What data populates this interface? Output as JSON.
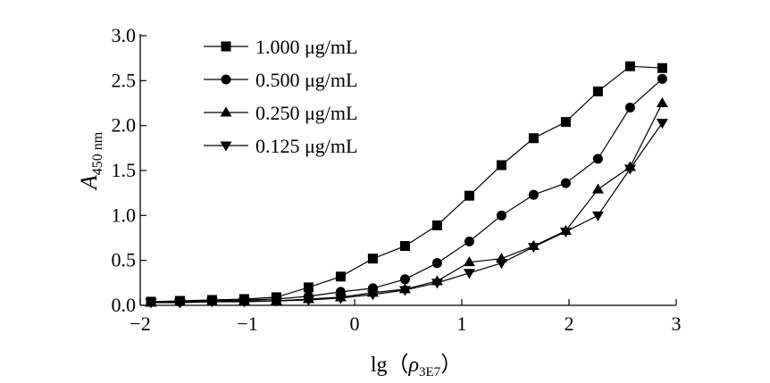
{
  "chart_data": {
    "type": "line",
    "xlabel": {
      "main": "lg（",
      "symbol": "ρ",
      "sub": "3E7",
      "close": "）"
    },
    "ylabel": {
      "main": "A",
      "sub": "450 nm"
    },
    "xlim": [
      -2,
      3
    ],
    "ylim": [
      0,
      3
    ],
    "xticks": [
      "−2",
      "−1",
      "0",
      "1",
      "2",
      "3"
    ],
    "xtick_values": [
      -2,
      -1,
      0,
      1,
      2,
      3
    ],
    "yticks": [
      "0.0",
      "0.5",
      "1.0",
      "1.5",
      "2.0",
      "2.5",
      "3.0"
    ],
    "ytick_values": [
      0,
      0.5,
      1,
      1.5,
      2,
      2.5,
      3
    ],
    "grid": false,
    "legend_position": "top-left",
    "series": [
      {
        "name": "1.000 μg/mL",
        "marker": "square",
        "x": [
          -1.9,
          -1.63,
          -1.33,
          -1.03,
          -0.73,
          -0.43,
          -0.13,
          0.17,
          0.47,
          0.77,
          1.07,
          1.37,
          1.67,
          1.97,
          2.27,
          2.57,
          2.87
        ],
        "y": [
          0.04,
          0.05,
          0.06,
          0.07,
          0.09,
          0.2,
          0.32,
          0.52,
          0.66,
          0.89,
          1.22,
          1.56,
          1.86,
          2.04,
          2.38,
          2.66,
          2.64
        ]
      },
      {
        "name": "0.500 μg/mL",
        "marker": "circle",
        "x": [
          -1.9,
          -1.63,
          -1.33,
          -1.03,
          -0.73,
          -0.43,
          -0.13,
          0.17,
          0.47,
          0.77,
          1.07,
          1.37,
          1.67,
          1.97,
          2.27,
          2.57,
          2.87
        ],
        "y": [
          0.04,
          0.04,
          0.05,
          0.06,
          0.07,
          0.1,
          0.15,
          0.19,
          0.29,
          0.47,
          0.71,
          1.0,
          1.23,
          1.36,
          1.63,
          2.2,
          2.52
        ]
      },
      {
        "name": "0.250 μg/mL",
        "marker": "triangle-up",
        "x": [
          -1.9,
          -1.63,
          -1.33,
          -1.03,
          -0.73,
          -0.43,
          -0.13,
          0.17,
          0.47,
          0.77,
          1.07,
          1.37,
          1.67,
          1.97,
          2.27,
          2.57,
          2.87
        ],
        "y": [
          0.03,
          0.04,
          0.04,
          0.05,
          0.05,
          0.07,
          0.09,
          0.14,
          0.18,
          0.27,
          0.48,
          0.52,
          0.66,
          0.83,
          1.29,
          1.54,
          2.25
        ]
      },
      {
        "name": "0.125 μg/mL",
        "marker": "triangle-down",
        "x": [
          -1.9,
          -1.63,
          -1.33,
          -1.03,
          -0.73,
          -0.43,
          -0.13,
          0.17,
          0.47,
          0.77,
          1.07,
          1.37,
          1.67,
          1.97,
          2.27,
          2.57,
          2.87
        ],
        "y": [
          0.03,
          0.03,
          0.04,
          0.04,
          0.05,
          0.06,
          0.08,
          0.12,
          0.17,
          0.25,
          0.36,
          0.47,
          0.65,
          0.82,
          1.0,
          1.52,
          2.03
        ]
      }
    ]
  }
}
